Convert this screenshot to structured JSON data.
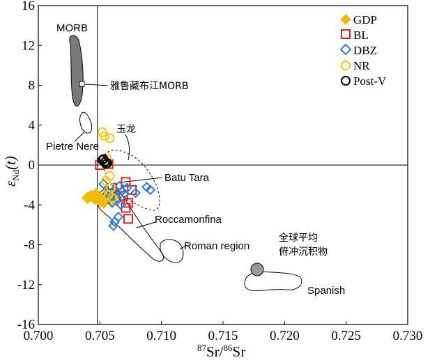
{
  "chart_data": {
    "type": "scatter",
    "xlabel_sup1": "87",
    "xlabel_a": "Sr/",
    "xlabel_sup2": "86",
    "xlabel_b": "Sr",
    "ylabel_main": "ε",
    "ylabel_sub": "Nd",
    "ylabel_tail": "(t)",
    "xlim": [
      0.7,
      0.73
    ],
    "ylim": [
      -16,
      16
    ],
    "x_ticks": [
      0.7,
      0.705,
      0.71,
      0.715,
      0.72,
      0.725,
      0.73
    ],
    "x_tick_labels": [
      "0.700",
      "0.705",
      "0.710",
      "0.715",
      "0.720",
      "0.725",
      "0.730"
    ],
    "y_ticks": [
      -16,
      -12,
      -8,
      -4,
      0,
      4,
      8,
      12,
      16
    ],
    "y_tick_labels": [
      "-16",
      "-12",
      "-8",
      "-4",
      "0",
      "4",
      "8",
      "12",
      "16"
    ],
    "reference_lines": {
      "x": 0.7048,
      "y": 0
    },
    "legend_position": "top-right",
    "series": [
      {
        "name": "GDP",
        "marker": "diamond-filled",
        "color": "#f5b800",
        "points": [
          [
            0.704,
            -3.3
          ],
          [
            0.7043,
            -3.1
          ],
          [
            0.7046,
            -3.4
          ],
          [
            0.7049,
            -3.2
          ],
          [
            0.7052,
            -3.5
          ],
          [
            0.7055,
            -3.0
          ],
          [
            0.7057,
            -3.3
          ],
          [
            0.7059,
            -3.6
          ],
          [
            0.7047,
            -2.9
          ],
          [
            0.7053,
            -3.8
          ],
          [
            0.7061,
            -3.2
          ],
          [
            0.705,
            -3.6
          ]
        ]
      },
      {
        "name": "BL",
        "marker": "square-open",
        "color": "#e02020",
        "points": [
          [
            0.705,
            0.0
          ],
          [
            0.7057,
            0.1
          ],
          [
            0.7071,
            -1.7
          ],
          [
            0.7076,
            -2.5
          ],
          [
            0.7069,
            -3.1
          ],
          [
            0.7073,
            -3.8
          ],
          [
            0.7071,
            -4.3
          ],
          [
            0.7073,
            -5.4
          ],
          [
            0.706,
            -2.3
          ]
        ]
      },
      {
        "name": "DBZ",
        "marker": "diamond-open",
        "color": "#2a7bd1",
        "points": [
          [
            0.7053,
            -1.9
          ],
          [
            0.7058,
            -2.2
          ],
          [
            0.7062,
            -2.5
          ],
          [
            0.7066,
            -2.1
          ],
          [
            0.707,
            -2.9
          ],
          [
            0.7064,
            -3.3
          ],
          [
            0.706,
            -3.8
          ],
          [
            0.7067,
            -4.0
          ],
          [
            0.7065,
            -5.2
          ],
          [
            0.7062,
            -5.7
          ],
          [
            0.7061,
            -6.1
          ],
          [
            0.7088,
            -2.2
          ],
          [
            0.7091,
            -2.5
          ],
          [
            0.7079,
            -2.8
          ],
          [
            0.7056,
            -2.9
          ],
          [
            0.7068,
            -2.6
          ],
          [
            0.7059,
            -3.1
          ],
          [
            0.7072,
            -2.3
          ]
        ]
      },
      {
        "name": "NR",
        "marker": "circle-open",
        "color": "#f5c518",
        "points": [
          [
            0.7052,
            3.3
          ],
          [
            0.7054,
            2.9
          ],
          [
            0.7058,
            2.7
          ],
          [
            0.7056,
            0.6
          ],
          [
            0.7058,
            -1.1
          ],
          [
            0.7059,
            -2.3
          ],
          [
            0.7057,
            -3.0
          ],
          [
            0.706,
            -3.3
          ],
          [
            0.7055,
            -1.6
          ]
        ]
      },
      {
        "name": "Post-V",
        "marker": "circle-open",
        "color": "#000000",
        "points": [
          [
            0.7052,
            0.5
          ],
          [
            0.7054,
            0.3
          ],
          [
            0.7055,
            0.1
          ],
          [
            0.7053,
            0.6
          ],
          [
            0.7056,
            0.2
          ]
        ]
      }
    ],
    "regions": [
      {
        "label": "MORB",
        "style": "filled-gray"
      },
      {
        "label": "雅鲁藏布江MORB"
      },
      {
        "label": "Pietre Nere"
      },
      {
        "label": "玉龙",
        "style": "dashed"
      },
      {
        "label": "Batu Tara"
      },
      {
        "label": "Roccamonfina"
      },
      {
        "label": "Roman region"
      },
      {
        "label": "全球平均",
        "label2": "俯冲沉积物"
      },
      {
        "label": "Spanish"
      }
    ]
  }
}
